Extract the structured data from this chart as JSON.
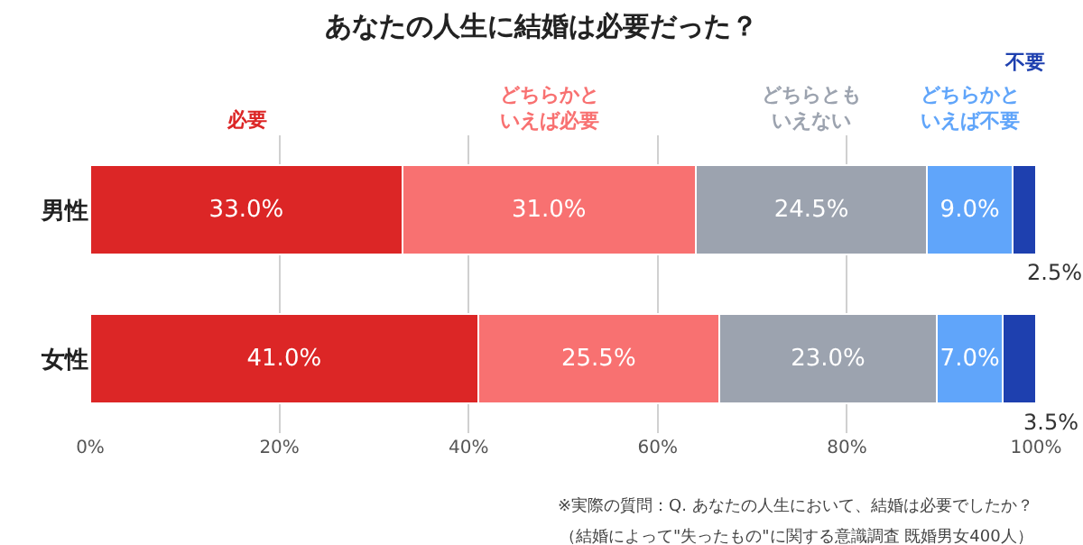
{
  "chart_data": {
    "type": "bar",
    "orientation": "horizontal",
    "stacked": true,
    "title": "あなたの人生に結婚は必要だった？",
    "categories": [
      "男性",
      "女性"
    ],
    "series": [
      {
        "name": "必要",
        "color": "#dc2626",
        "values": [
          33.0,
          41.0
        ],
        "value_labels": [
          "33.0%",
          "41.0%"
        ]
      },
      {
        "name": "どちらかといえば必要",
        "color": "#f87171",
        "values": [
          31.0,
          25.5
        ],
        "value_labels": [
          "31.0%",
          "25.5%"
        ]
      },
      {
        "name": "どちらともいえない",
        "color": "#9ca3af",
        "values": [
          24.5,
          23.0
        ],
        "value_labels": [
          "24.5%",
          "23.0%"
        ]
      },
      {
        "name": "どちらかといえば不要",
        "color": "#60a5fa",
        "values": [
          9.0,
          7.0
        ],
        "value_labels": [
          "9.0%",
          "7.0%"
        ]
      },
      {
        "name": "不要",
        "color": "#1e40af",
        "values": [
          2.5,
          3.5
        ],
        "value_labels": [
          "2.5%",
          "3.5%"
        ]
      }
    ],
    "xlim": [
      0,
      100
    ],
    "xticks": [
      {
        "value": 0,
        "label": "0%"
      },
      {
        "value": 20,
        "label": "20%"
      },
      {
        "value": 40,
        "label": "40%"
      },
      {
        "value": 60,
        "label": "60%"
      },
      {
        "value": 80,
        "label": "80%"
      },
      {
        "value": 100,
        "label": "100%"
      }
    ],
    "grid": "x",
    "annotations": [
      "※実際の質問：Q. あなたの人生において、結婚は必要でしたか？",
      "（結婚によって\"失ったもの\"に関する意識調査 既婚男女400人）"
    ]
  }
}
